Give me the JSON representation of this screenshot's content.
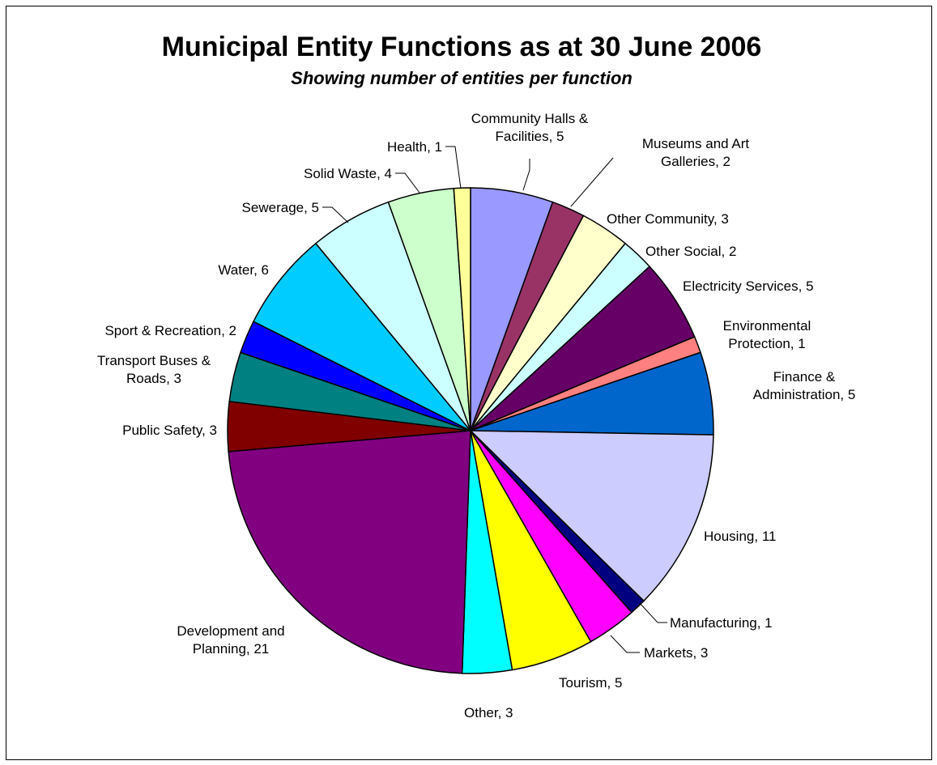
{
  "chart_data": {
    "type": "pie",
    "title": "Municipal Entity Functions as at 30 June 2006",
    "subtitle": "Showing number of entities per function",
    "start_angle_deg": 0,
    "direction": "clockwise",
    "slices": [
      {
        "label": "Community Halls & Facilities",
        "value": 5,
        "color": "#9999ff",
        "display": [
          "Community Halls &",
          "Facilities, 5"
        ]
      },
      {
        "label": "Museums and Art Galleries",
        "value": 2,
        "color": "#993366",
        "display": [
          "Museums and Art",
          "Galleries, 2"
        ]
      },
      {
        "label": "Other Community",
        "value": 3,
        "color": "#ffffcc",
        "display": [
          "Other Community, 3"
        ]
      },
      {
        "label": "Other Social",
        "value": 2,
        "color": "#ccffff",
        "display": [
          "Other Social, 2"
        ]
      },
      {
        "label": "Electricity Services",
        "value": 5,
        "color": "#660066",
        "display": [
          "Electricity Services, 5"
        ]
      },
      {
        "label": "Environmental Protection",
        "value": 1,
        "color": "#ff8080",
        "display": [
          "Environmental",
          "Protection, 1"
        ]
      },
      {
        "label": "Finance & Administration",
        "value": 5,
        "color": "#0066cc",
        "display": [
          "Finance &",
          "Administration, 5"
        ]
      },
      {
        "label": "Housing",
        "value": 11,
        "color": "#ccccff",
        "display": [
          "Housing, 11"
        ]
      },
      {
        "label": "Manufacturing",
        "value": 1,
        "color": "#000080",
        "display": [
          "Manufacturing, 1"
        ]
      },
      {
        "label": "Markets",
        "value": 3,
        "color": "#ff00ff",
        "display": [
          "Markets, 3"
        ]
      },
      {
        "label": "Tourism",
        "value": 5,
        "color": "#ffff00",
        "display": [
          "Tourism, 5"
        ]
      },
      {
        "label": "Other",
        "value": 3,
        "color": "#00ffff",
        "display": [
          "Other, 3"
        ]
      },
      {
        "label": "Development and Planning",
        "value": 21,
        "color": "#800080",
        "display": [
          "Development and",
          "Planning, 21"
        ]
      },
      {
        "label": "Public Safety",
        "value": 3,
        "color": "#800000",
        "display": [
          "Public Safety, 3"
        ]
      },
      {
        "label": "Transport Buses & Roads",
        "value": 3,
        "color": "#008080",
        "display": [
          "Transport Buses &",
          "Roads, 3"
        ]
      },
      {
        "label": "Sport & Recreation",
        "value": 2,
        "color": "#0000ff",
        "display": [
          "Sport & Recreation, 2"
        ]
      },
      {
        "label": "Water",
        "value": 6,
        "color": "#00ccff",
        "display": [
          "Water, 6"
        ]
      },
      {
        "label": "Sewerage",
        "value": 5,
        "color": "#ccffff",
        "display": [
          "Sewerage, 5"
        ]
      },
      {
        "label": "Solid Waste",
        "value": 4,
        "color": "#ccffcc",
        "display": [
          "Solid Waste, 4"
        ]
      },
      {
        "label": "Health",
        "value": 1,
        "color": "#ffff99",
        "display": [
          "Health, 1"
        ]
      }
    ]
  }
}
